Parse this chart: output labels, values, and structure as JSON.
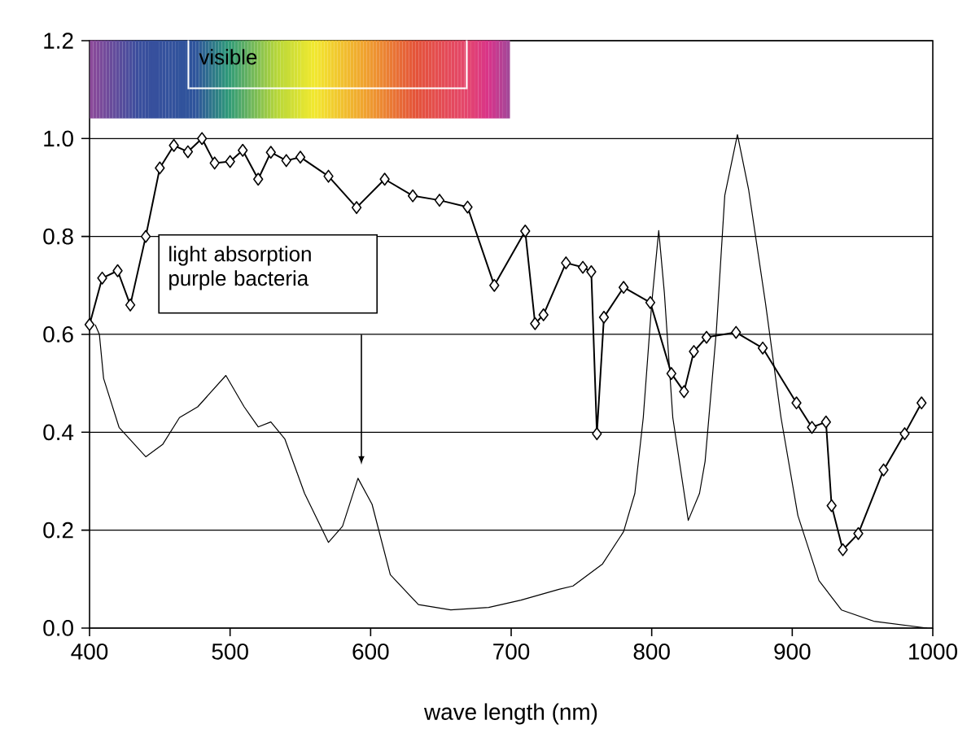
{
  "chart_data": {
    "type": "line",
    "xlabel": "wave length (nm)",
    "xlim": [
      400,
      1000
    ],
    "ylim": [
      0,
      1.2
    ],
    "xticks": [
      400,
      500,
      600,
      700,
      800,
      900,
      1000
    ],
    "yticks": [
      {
        "value": 0,
        "label": "0.0"
      },
      {
        "value": 0.2,
        "label": "0.2"
      },
      {
        "value": 0.4,
        "label": "0.4"
      },
      {
        "value": 0.6,
        "label": "0.6"
      },
      {
        "value": 0.8,
        "label": "0.8"
      },
      {
        "value": 1.0,
        "label": "1.0"
      },
      {
        "value": 1.2,
        "label": "1.2"
      }
    ],
    "grid": "y",
    "series": [
      {
        "color": "#000000",
        "marker": "diamond",
        "x": [
          400,
          409,
          420,
          429,
          440,
          450,
          460,
          470,
          480,
          489,
          500,
          509,
          520,
          529,
          540,
          550,
          570,
          590,
          610,
          630,
          649,
          669,
          688,
          710,
          717,
          723,
          739,
          751,
          757,
          761,
          766,
          780,
          799,
          814,
          823,
          830,
          839,
          860,
          879,
          903,
          914,
          924,
          928,
          936,
          947,
          965,
          980,
          992
        ],
        "values": [
          0.62,
          0.715,
          0.73,
          0.66,
          0.8,
          0.94,
          0.986,
          0.973,
          1.0,
          0.95,
          0.953,
          0.976,
          0.917,
          0.972,
          0.955,
          0.962,
          0.923,
          0.859,
          0.917,
          0.883,
          0.874,
          0.86,
          0.7,
          0.811,
          0.622,
          0.64,
          0.746,
          0.737,
          0.728,
          0.397,
          0.635,
          0.696,
          0.665,
          0.52,
          0.483,
          0.565,
          0.594,
          0.604,
          0.572,
          0.46,
          0.41,
          0.421,
          0.25,
          0.16,
          0.193,
          0.323,
          0.397,
          0.46
        ]
      },
      {
        "color": "#000000",
        "marker": "none",
        "x": [
          404,
          407,
          410,
          421,
          440,
          452,
          464,
          477,
          497,
          510,
          520,
          529,
          539,
          553,
          570,
          580,
          591,
          601,
          614,
          634,
          657,
          684,
          707,
          734,
          744,
          765,
          780,
          788,
          794,
          800,
          805,
          809,
          815,
          826,
          834,
          838,
          842,
          846,
          852,
          861,
          869,
          881,
          892,
          904,
          919,
          935,
          958,
          996
        ],
        "values": [
          0.62,
          0.6,
          0.51,
          0.41,
          0.35,
          0.375,
          0.43,
          0.452,
          0.516,
          0.452,
          0.411,
          0.421,
          0.386,
          0.275,
          0.175,
          0.208,
          0.306,
          0.253,
          0.109,
          0.048,
          0.037,
          0.042,
          0.057,
          0.079,
          0.086,
          0.131,
          0.197,
          0.275,
          0.43,
          0.663,
          0.812,
          0.685,
          0.43,
          0.22,
          0.275,
          0.341,
          0.474,
          0.607,
          0.884,
          1.008,
          0.895,
          0.663,
          0.43,
          0.23,
          0.097,
          0.037,
          0.014,
          0.0
        ]
      }
    ],
    "annotations": [
      "visible",
      "light absorption purple bacteria"
    ]
  }
}
